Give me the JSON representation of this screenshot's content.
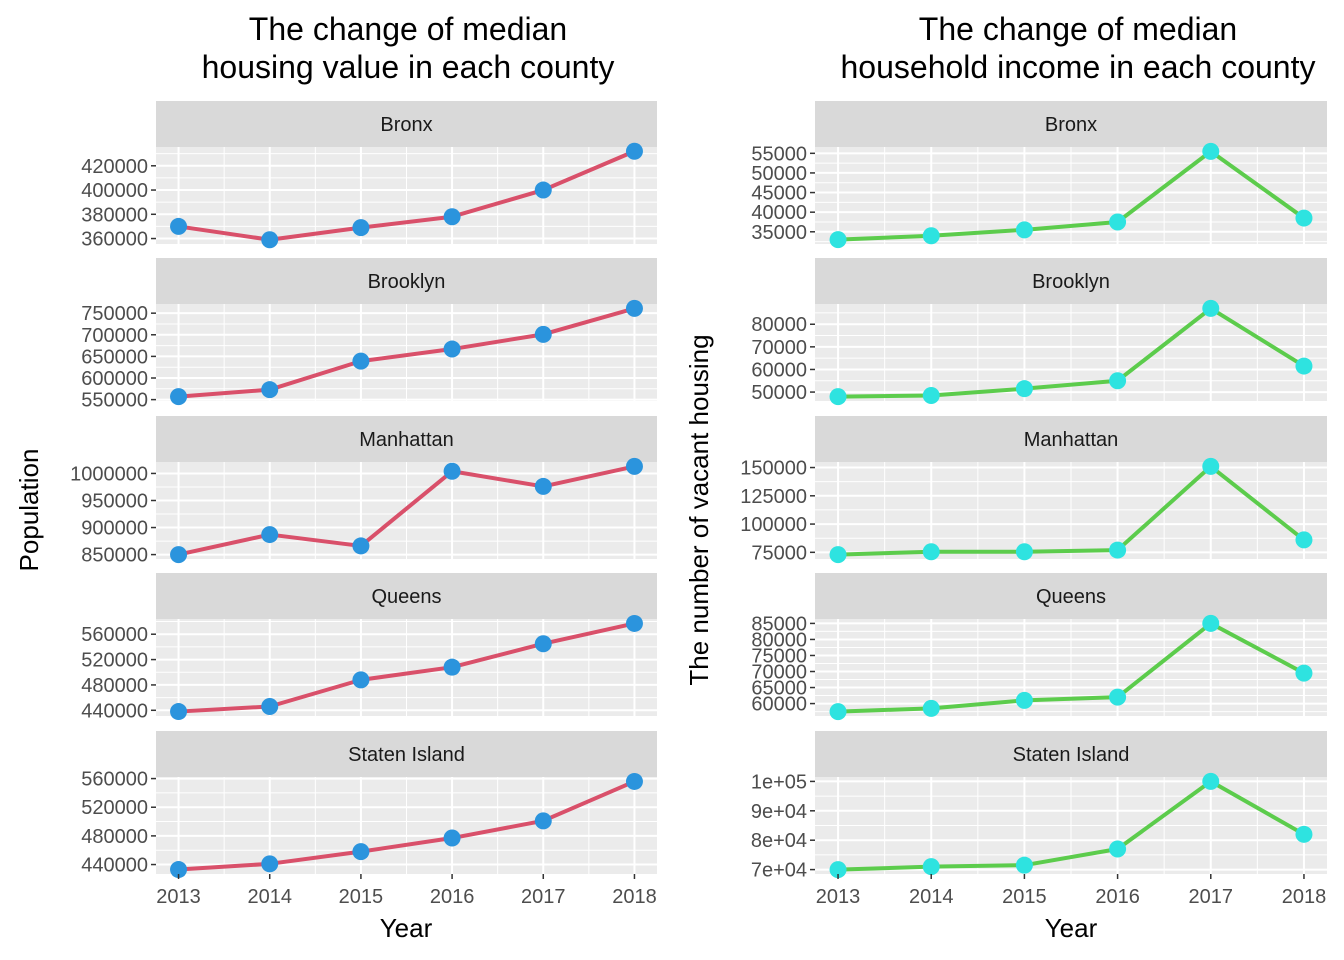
{
  "figure": {
    "background": "#ffffff",
    "panel_background": "#ebebeb",
    "strip_background": "#d9d9d9"
  },
  "chart_data": [
    {
      "type": "line",
      "title": "The change of  median\nhousing value in each county",
      "xlabel": "Year",
      "ylabel": "Population",
      "x": [
        2013,
        2014,
        2015,
        2016,
        2017,
        2018
      ],
      "line_color": "#d9506a",
      "point_color": "#2b94dd",
      "grid": true,
      "facets": [
        {
          "name": "Bronx",
          "values": [
            370000,
            359000,
            369000,
            378000,
            400000,
            432000
          ],
          "yticks": [
            360000,
            380000,
            400000,
            420000
          ],
          "tick_labels": [
            "360000",
            "380000",
            "400000",
            "420000"
          ],
          "ylim": [
            355500,
            435500
          ]
        },
        {
          "name": "Brooklyn",
          "values": [
            557000,
            573000,
            639000,
            667000,
            701000,
            761000
          ],
          "yticks": [
            550000,
            600000,
            650000,
            700000,
            750000
          ],
          "tick_labels": [
            "550000",
            "600000",
            "650000",
            "700000",
            "750000"
          ],
          "ylim": [
            546800,
            771200
          ]
        },
        {
          "name": "Manhattan",
          "values": [
            850000,
            887000,
            866000,
            1004000,
            976000,
            1013000
          ],
          "yticks": [
            850000,
            900000,
            950000,
            1000000
          ],
          "tick_labels": [
            "850000",
            "900000",
            "950000",
            "1000000"
          ],
          "ylim": [
            841850,
            1021150
          ]
        },
        {
          "name": "Queens",
          "values": [
            438000,
            446000,
            488000,
            508000,
            545000,
            577000
          ],
          "yticks": [
            440000,
            480000,
            520000,
            560000
          ],
          "tick_labels": [
            "440000",
            "480000",
            "520000",
            "560000"
          ],
          "ylim": [
            431000,
            584000
          ]
        },
        {
          "name": "Staten Island",
          "values": [
            433000,
            441000,
            458000,
            477000,
            501000,
            556000
          ],
          "yticks": [
            440000,
            480000,
            520000,
            560000
          ],
          "tick_labels": [
            "440000",
            "480000",
            "520000",
            "560000"
          ],
          "ylim": [
            426800,
            562200
          ]
        }
      ]
    },
    {
      "type": "line",
      "title": "The change of  median\nhousehold income in each county",
      "xlabel": "Year",
      "ylabel": "The number of vacant housing",
      "x": [
        2013,
        2014,
        2015,
        2016,
        2017,
        2018
      ],
      "line_color": "#5ccc4c",
      "point_color": "#2ee3e0",
      "grid": true,
      "facets": [
        {
          "name": "Bronx",
          "values": [
            33000,
            34000,
            35500,
            37500,
            55500,
            38500
          ],
          "yticks": [
            35000,
            40000,
            45000,
            50000,
            55000
          ],
          "tick_labels": [
            "35000",
            "40000",
            "45000",
            "50000",
            "55000"
          ],
          "ylim": [
            31890,
            56610
          ]
        },
        {
          "name": "Brooklyn",
          "values": [
            48000,
            48500,
            51500,
            55000,
            87000,
            61500
          ],
          "yticks": [
            50000,
            60000,
            70000,
            80000
          ],
          "tick_labels": [
            "50000",
            "60000",
            "70000",
            "80000"
          ],
          "ylim": [
            46050,
            88950
          ]
        },
        {
          "name": "Manhattan",
          "values": [
            73000,
            75500,
            75500,
            77000,
            151000,
            86000
          ],
          "yticks": [
            75000,
            100000,
            125000,
            150000
          ],
          "tick_labels": [
            "75000",
            "100000",
            "125000",
            "150000"
          ],
          "ylim": [
            69100,
            154900
          ]
        },
        {
          "name": "Queens",
          "values": [
            57500,
            58500,
            61000,
            62000,
            85000,
            69500
          ],
          "yticks": [
            60000,
            65000,
            70000,
            75000,
            80000,
            85000
          ],
          "tick_labels": [
            "60000",
            "65000",
            "70000",
            "75000",
            "80000",
            "85000"
          ],
          "ylim": [
            56125,
            86375
          ]
        },
        {
          "name": "Staten Island",
          "values": [
            70000,
            71000,
            71500,
            77000,
            100000,
            82000
          ],
          "yticks": [
            70000,
            80000,
            90000,
            100000
          ],
          "tick_labels": [
            "7e+04",
            "8e+04",
            "9e+04",
            "1e+05"
          ],
          "ylim": [
            68500,
            101500
          ]
        }
      ]
    }
  ]
}
